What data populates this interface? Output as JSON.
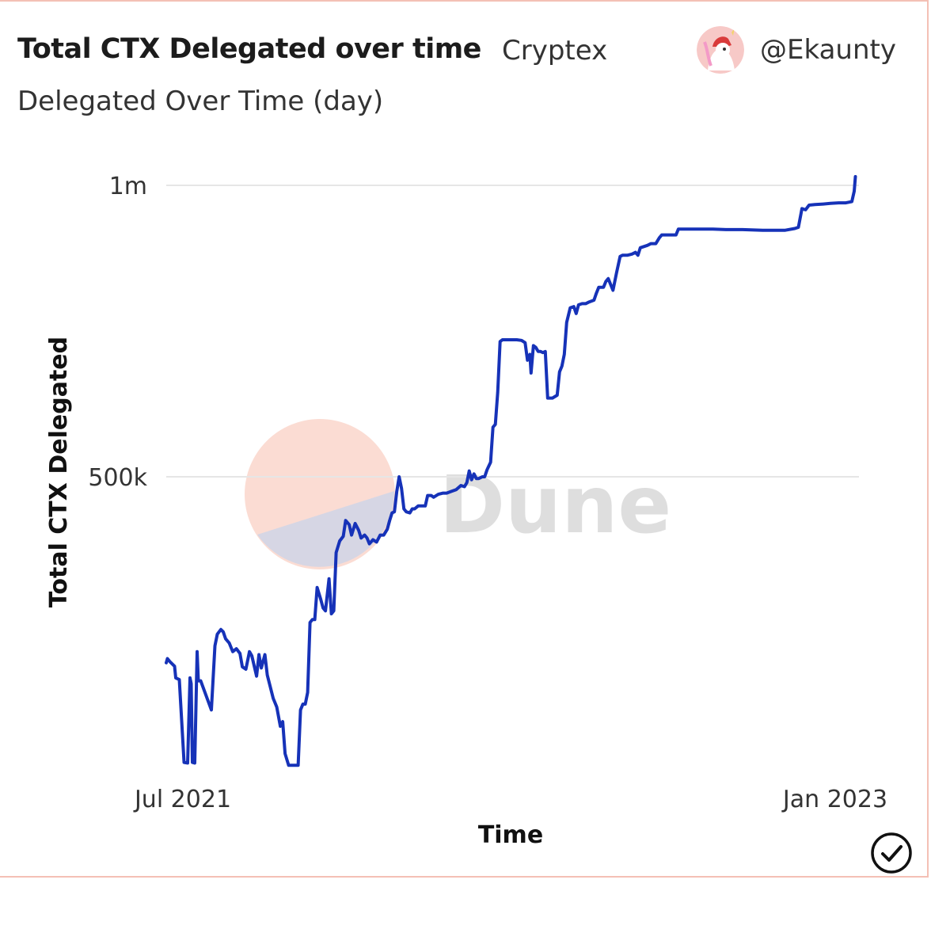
{
  "header": {
    "title": "Total CTX Delegated over time",
    "project": "Cryptex",
    "subtitle": "Delegated Over Time (day)",
    "author": "@Ekaunty"
  },
  "watermark": {
    "text": "Dune"
  },
  "chart_data": {
    "type": "line",
    "title": "Total CTX Delegated over time",
    "subtitle": "Delegated Over Time (day)",
    "xlabel": "Time",
    "ylabel": "Total CTX Delegated",
    "y_ticks": [
      {
        "value": 1000000,
        "label": "1m"
      },
      {
        "value": 500000,
        "label": "500k"
      }
    ],
    "x_ticks": [
      {
        "value": "2021-07-01",
        "label": "Jul 2021"
      },
      {
        "value": "2023-01-01",
        "label": "Jan 2023"
      }
    ],
    "xlim": [
      "2021-06-17",
      "2023-01-21"
    ],
    "ylim": [
      0,
      1000000
    ],
    "grid": true,
    "color": "#1632b8",
    "series": [
      {
        "points": [
          [
            "2021-06-17",
            181000
          ],
          [
            "2021-06-18",
            188000
          ],
          [
            "2021-06-20",
            183000
          ],
          [
            "2021-06-24",
            175000
          ],
          [
            "2021-06-25",
            155000
          ],
          [
            "2021-06-28",
            152000
          ],
          [
            "2021-07-02",
            10000
          ],
          [
            "2021-07-05",
            9000
          ],
          [
            "2021-07-07",
            155000
          ],
          [
            "2021-07-08",
            145000
          ],
          [
            "2021-07-09",
            10000
          ],
          [
            "2021-07-11",
            9000
          ],
          [
            "2021-07-13",
            200000
          ],
          [
            "2021-07-14",
            150000
          ],
          [
            "2021-07-16",
            150000
          ],
          [
            "2021-07-25",
            100000
          ],
          [
            "2021-07-28",
            210000
          ],
          [
            "2021-07-30",
            230000
          ],
          [
            "2021-08-02",
            238000
          ],
          [
            "2021-08-04",
            234000
          ],
          [
            "2021-08-06",
            222000
          ],
          [
            "2021-08-09",
            215000
          ],
          [
            "2021-08-12",
            200000
          ],
          [
            "2021-08-15",
            205000
          ],
          [
            "2021-08-18",
            197000
          ],
          [
            "2021-08-20",
            174000
          ],
          [
            "2021-08-23",
            170000
          ],
          [
            "2021-08-26",
            200000
          ],
          [
            "2021-08-28",
            193000
          ],
          [
            "2021-09-01",
            158000
          ],
          [
            "2021-09-03",
            195000
          ],
          [
            "2021-09-05",
            172000
          ],
          [
            "2021-09-08",
            195000
          ],
          [
            "2021-09-10",
            160000
          ],
          [
            "2021-09-15",
            120000
          ],
          [
            "2021-09-18",
            105000
          ],
          [
            "2021-09-21",
            72000
          ],
          [
            "2021-09-23",
            80000
          ],
          [
            "2021-09-25",
            25000
          ],
          [
            "2021-09-28",
            5000
          ],
          [
            "2021-10-06",
            5000
          ],
          [
            "2021-10-08",
            100000
          ],
          [
            "2021-10-10",
            110000
          ],
          [
            "2021-10-12",
            110000
          ],
          [
            "2021-10-14",
            130000
          ],
          [
            "2021-10-16",
            250000
          ],
          [
            "2021-10-18",
            255000
          ],
          [
            "2021-10-20",
            255000
          ],
          [
            "2021-10-22",
            310000
          ],
          [
            "2021-10-25",
            290000
          ],
          [
            "2021-10-27",
            275000
          ],
          [
            "2021-10-29",
            270000
          ],
          [
            "2021-11-01",
            325000
          ],
          [
            "2021-11-03",
            265000
          ],
          [
            "2021-11-05",
            270000
          ],
          [
            "2021-11-07",
            370000
          ],
          [
            "2021-11-10",
            390000
          ],
          [
            "2021-11-13",
            398000
          ],
          [
            "2021-11-15",
            425000
          ],
          [
            "2021-11-18",
            418000
          ],
          [
            "2021-11-20",
            400000
          ],
          [
            "2021-11-23",
            420000
          ],
          [
            "2021-11-26",
            408000
          ],
          [
            "2021-11-28",
            395000
          ],
          [
            "2021-12-01",
            400000
          ],
          [
            "2021-12-03",
            395000
          ],
          [
            "2021-12-05",
            385000
          ],
          [
            "2021-12-08",
            392000
          ],
          [
            "2021-12-11",
            388000
          ],
          [
            "2021-12-14",
            400000
          ],
          [
            "2021-12-17",
            400000
          ],
          [
            "2021-12-20",
            410000
          ],
          [
            "2021-12-22",
            425000
          ],
          [
            "2021-12-24",
            438000
          ],
          [
            "2021-12-26",
            440000
          ],
          [
            "2021-12-28",
            475000
          ],
          [
            "2021-12-30",
            500000
          ],
          [
            "2022-01-01",
            480000
          ],
          [
            "2022-01-03",
            445000
          ],
          [
            "2022-01-05",
            440000
          ],
          [
            "2022-01-08",
            438000
          ],
          [
            "2022-01-10",
            445000
          ],
          [
            "2022-01-12",
            445000
          ],
          [
            "2022-01-15",
            450000
          ],
          [
            "2022-01-18",
            450000
          ],
          [
            "2022-01-21",
            450000
          ],
          [
            "2022-01-23",
            468000
          ],
          [
            "2022-01-26",
            468000
          ],
          [
            "2022-01-28",
            465000
          ],
          [
            "2022-02-01",
            470000
          ],
          [
            "2022-02-05",
            472000
          ],
          [
            "2022-02-08",
            472000
          ],
          [
            "2022-02-12",
            475000
          ],
          [
            "2022-02-16",
            478000
          ],
          [
            "2022-02-20",
            485000
          ],
          [
            "2022-02-23",
            483000
          ],
          [
            "2022-02-25",
            490000
          ],
          [
            "2022-02-27",
            510000
          ],
          [
            "2022-03-01",
            495000
          ],
          [
            "2022-03-03",
            505000
          ],
          [
            "2022-03-05",
            497000
          ],
          [
            "2022-03-07",
            497000
          ],
          [
            "2022-03-10",
            500000
          ],
          [
            "2022-03-12",
            500000
          ],
          [
            "2022-03-14",
            512000
          ],
          [
            "2022-03-17",
            525000
          ],
          [
            "2022-03-19",
            585000
          ],
          [
            "2022-03-21",
            590000
          ],
          [
            "2022-03-23",
            645000
          ],
          [
            "2022-03-25",
            732000
          ],
          [
            "2022-03-27",
            735000
          ],
          [
            "2022-03-30",
            735000
          ],
          [
            "2022-04-03",
            735000
          ],
          [
            "2022-04-08",
            735000
          ],
          [
            "2022-04-12",
            734000
          ],
          [
            "2022-04-15",
            730000
          ],
          [
            "2022-04-17",
            700000
          ],
          [
            "2022-04-19",
            710000
          ],
          [
            "2022-04-20",
            678000
          ],
          [
            "2022-04-22",
            725000
          ],
          [
            "2022-04-24",
            722000
          ],
          [
            "2022-04-26",
            715000
          ],
          [
            "2022-04-28",
            715000
          ],
          [
            "2022-04-30",
            713000
          ],
          [
            "2022-05-02",
            715000
          ],
          [
            "2022-05-04",
            635000
          ],
          [
            "2022-05-08",
            635000
          ],
          [
            "2022-05-12",
            640000
          ],
          [
            "2022-05-14",
            680000
          ],
          [
            "2022-05-16",
            690000
          ],
          [
            "2022-05-18",
            710000
          ],
          [
            "2022-05-20",
            765000
          ],
          [
            "2022-05-23",
            790000
          ],
          [
            "2022-05-26",
            792000
          ],
          [
            "2022-05-28",
            780000
          ],
          [
            "2022-05-30",
            795000
          ],
          [
            "2022-06-02",
            797000
          ],
          [
            "2022-06-05",
            797000
          ],
          [
            "2022-06-08",
            800000
          ],
          [
            "2022-06-12",
            803000
          ],
          [
            "2022-06-14",
            815000
          ],
          [
            "2022-06-16",
            825000
          ],
          [
            "2022-06-20",
            825000
          ],
          [
            "2022-06-22",
            835000
          ],
          [
            "2022-06-24",
            840000
          ],
          [
            "2022-06-26",
            830000
          ],
          [
            "2022-06-28",
            820000
          ],
          [
            "2022-07-01",
            850000
          ],
          [
            "2022-07-04",
            878000
          ],
          [
            "2022-07-06",
            880000
          ],
          [
            "2022-07-10",
            880000
          ],
          [
            "2022-07-14",
            882000
          ],
          [
            "2022-07-17",
            885000
          ],
          [
            "2022-07-19",
            880000
          ],
          [
            "2022-07-21",
            893000
          ],
          [
            "2022-07-24",
            895000
          ],
          [
            "2022-07-27",
            897000
          ],
          [
            "2022-07-30",
            900000
          ],
          [
            "2022-08-03",
            900000
          ],
          [
            "2022-08-06",
            910000
          ],
          [
            "2022-08-08",
            915000
          ],
          [
            "2022-08-12",
            915000
          ],
          [
            "2022-08-16",
            915000
          ],
          [
            "2022-08-20",
            915000
          ],
          [
            "2022-08-22",
            925000
          ],
          [
            "2022-08-25",
            925000
          ],
          [
            "2022-09-01",
            925000
          ],
          [
            "2022-09-10",
            925000
          ],
          [
            "2022-09-20",
            925000
          ],
          [
            "2022-10-01",
            924000
          ],
          [
            "2022-10-15",
            924000
          ],
          [
            "2022-11-01",
            923000
          ],
          [
            "2022-11-20",
            923000
          ],
          [
            "2022-11-28",
            926000
          ],
          [
            "2022-12-01",
            928000
          ],
          [
            "2022-12-04",
            960000
          ],
          [
            "2022-12-07",
            958000
          ],
          [
            "2022-12-10",
            966000
          ],
          [
            "2022-12-15",
            967000
          ],
          [
            "2022-12-22",
            968000
          ],
          [
            "2022-12-28",
            969000
          ],
          [
            "2023-01-04",
            970000
          ],
          [
            "2023-01-10",
            970000
          ],
          [
            "2023-01-15",
            972000
          ],
          [
            "2023-01-17",
            990000
          ],
          [
            "2023-01-18",
            1015000
          ]
        ]
      }
    ]
  }
}
